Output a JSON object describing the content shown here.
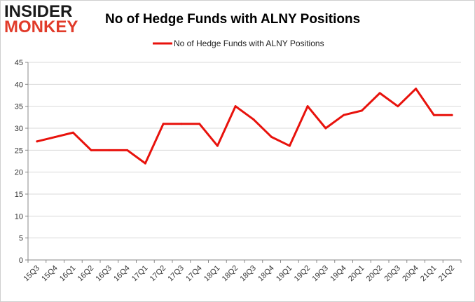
{
  "logo": {
    "line1": "INSIDER",
    "line2": "MONKEY"
  },
  "chart_data": {
    "type": "line",
    "title": "No of Hedge Funds with ALNY Positions",
    "xlabel": "",
    "ylabel": "",
    "categories": [
      "15Q3",
      "15Q4",
      "16Q1",
      "16Q2",
      "16Q3",
      "16Q4",
      "17Q1",
      "17Q2",
      "17Q3",
      "17Q4",
      "18Q1",
      "18Q2",
      "18Q3",
      "18Q4",
      "19Q1",
      "19Q2",
      "19Q3",
      "19Q4",
      "20Q1",
      "20Q2",
      "20Q3",
      "20Q4",
      "21Q1",
      "21Q2"
    ],
    "series": [
      {
        "name": "No of Hedge Funds with ALNY Positions",
        "color": "#e8120c",
        "values": [
          27,
          28,
          29,
          25,
          25,
          25,
          22,
          31,
          31,
          31,
          26,
          35,
          32,
          28,
          26,
          35,
          30,
          33,
          34,
          38,
          35,
          39,
          33,
          33
        ]
      }
    ],
    "ylim": [
      0,
      45
    ],
    "yticks": [
      0,
      5,
      10,
      15,
      20,
      25,
      30,
      35,
      40,
      45
    ],
    "grid": true,
    "legend": "top-center"
  }
}
